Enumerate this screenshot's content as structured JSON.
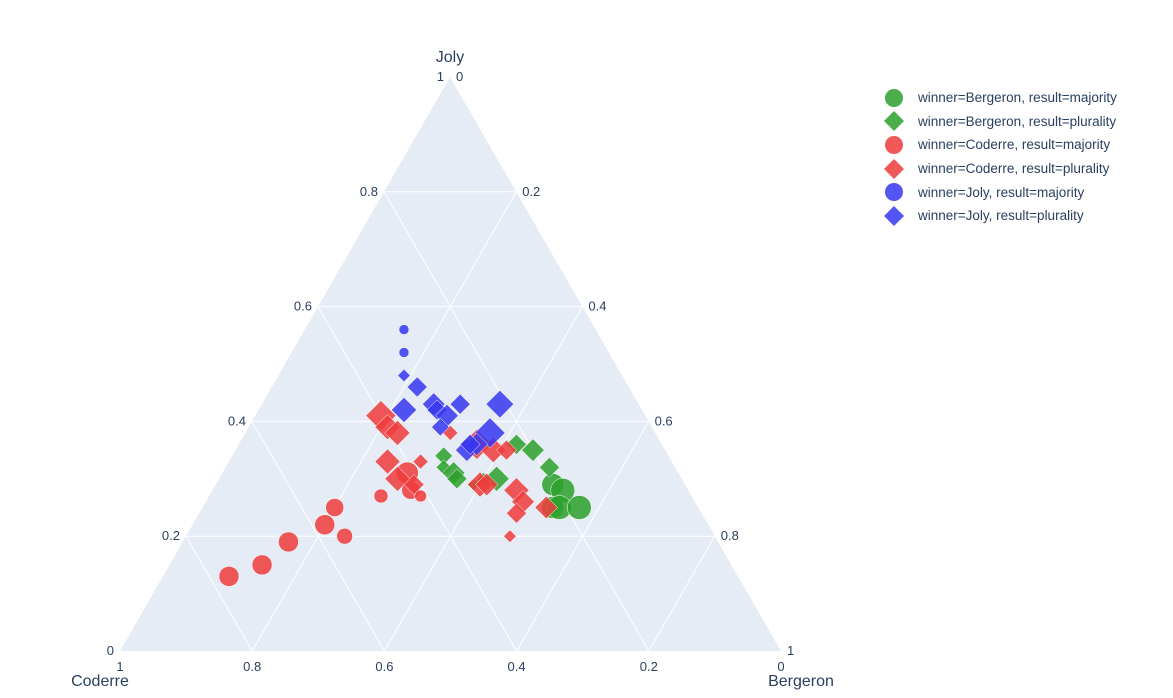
{
  "chart_data": {
    "type": "scatter",
    "subtype": "ternary",
    "axes": {
      "a": {
        "title": "Joly",
        "ticks": [
          "0",
          "0.2",
          "0.4",
          "0.6",
          "0.8",
          "1"
        ]
      },
      "b": {
        "title": "Coderre",
        "ticks": [
          "0",
          "0.2",
          "0.4",
          "0.6",
          "0.8",
          "1"
        ]
      },
      "c": {
        "title": "Bergeron",
        "ticks": [
          "0",
          "0.2",
          "0.4",
          "0.6",
          "0.8",
          "1"
        ]
      }
    },
    "grid": true,
    "legend_position": "top-right",
    "series": [
      {
        "name": "winner=Bergeron, result=majority",
        "color": "#2ca02c",
        "symbol": "circle",
        "points": [
          {
            "joly": 0.29,
            "coderre": 0.2,
            "bergeron": 0.51,
            "size": 11
          },
          {
            "joly": 0.28,
            "coderre": 0.19,
            "bergeron": 0.53,
            "size": 12
          },
          {
            "joly": 0.25,
            "coderre": 0.22,
            "bergeron": 0.53,
            "size": 11
          },
          {
            "joly": 0.25,
            "coderre": 0.21,
            "bergeron": 0.54,
            "size": 12
          },
          {
            "joly": 0.25,
            "coderre": 0.18,
            "bergeron": 0.57,
            "size": 12
          }
        ]
      },
      {
        "name": "winner=Bergeron, result=plurality",
        "color": "#2ca02c",
        "symbol": "diamond",
        "points": [
          {
            "joly": 0.34,
            "coderre": 0.34,
            "bergeron": 0.32,
            "size": 7
          },
          {
            "joly": 0.32,
            "coderre": 0.35,
            "bergeron": 0.33,
            "size": 6
          },
          {
            "joly": 0.31,
            "coderre": 0.34,
            "bergeron": 0.35,
            "size": 9
          },
          {
            "joly": 0.3,
            "coderre": 0.34,
            "bergeron": 0.36,
            "size": 8
          },
          {
            "joly": 0.29,
            "coderre": 0.32,
            "bergeron": 0.39,
            "size": 5
          },
          {
            "joly": 0.3,
            "coderre": 0.3,
            "bergeron": 0.4,
            "size": 5
          },
          {
            "joly": 0.3,
            "coderre": 0.28,
            "bergeron": 0.42,
            "size": 10
          },
          {
            "joly": 0.36,
            "coderre": 0.22,
            "bergeron": 0.42,
            "size": 8
          },
          {
            "joly": 0.35,
            "coderre": 0.2,
            "bergeron": 0.45,
            "size": 9
          },
          {
            "joly": 0.32,
            "coderre": 0.19,
            "bergeron": 0.49,
            "size": 8
          }
        ]
      },
      {
        "name": "winner=Coderre, result=majority",
        "color": "#ef3b3b",
        "symbol": "circle",
        "points": [
          {
            "joly": 0.13,
            "coderre": 0.77,
            "bergeron": 0.1,
            "size": 10
          },
          {
            "joly": 0.15,
            "coderre": 0.71,
            "bergeron": 0.14,
            "size": 10
          },
          {
            "joly": 0.19,
            "coderre": 0.65,
            "bergeron": 0.16,
            "size": 10
          },
          {
            "joly": 0.22,
            "coderre": 0.58,
            "bergeron": 0.2,
            "size": 10
          },
          {
            "joly": 0.25,
            "coderre": 0.55,
            "bergeron": 0.2,
            "size": 9
          },
          {
            "joly": 0.2,
            "coderre": 0.56,
            "bergeron": 0.24,
            "size": 8
          },
          {
            "joly": 0.27,
            "coderre": 0.47,
            "bergeron": 0.26,
            "size": 7
          },
          {
            "joly": 0.31,
            "coderre": 0.41,
            "bergeron": 0.28,
            "size": 11
          },
          {
            "joly": 0.28,
            "coderre": 0.42,
            "bergeron": 0.3,
            "size": 9
          },
          {
            "joly": 0.27,
            "coderre": 0.41,
            "bergeron": 0.32,
            "size": 6
          }
        ]
      },
      {
        "name": "winner=Coderre, result=plurality",
        "color": "#ef3b3b",
        "symbol": "diamond",
        "points": [
          {
            "joly": 0.41,
            "coderre": 0.4,
            "bergeron": 0.19,
            "size": 12
          },
          {
            "joly": 0.39,
            "coderre": 0.4,
            "bergeron": 0.21,
            "size": 10
          },
          {
            "joly": 0.38,
            "coderre": 0.39,
            "bergeron": 0.23,
            "size": 10
          },
          {
            "joly": 0.33,
            "coderre": 0.43,
            "bergeron": 0.24,
            "size": 10
          },
          {
            "joly": 0.3,
            "coderre": 0.43,
            "bergeron": 0.27,
            "size": 10
          },
          {
            "joly": 0.29,
            "coderre": 0.41,
            "bergeron": 0.3,
            "size": 8
          },
          {
            "joly": 0.33,
            "coderre": 0.38,
            "bergeron": 0.29,
            "size": 6
          },
          {
            "joly": 0.38,
            "coderre": 0.31,
            "bergeron": 0.31,
            "size": 6
          },
          {
            "joly": 0.36,
            "coderre": 0.28,
            "bergeron": 0.36,
            "size": 12
          },
          {
            "joly": 0.35,
            "coderre": 0.26,
            "bergeron": 0.39,
            "size": 10
          },
          {
            "joly": 0.35,
            "coderre": 0.24,
            "bergeron": 0.41,
            "size": 8
          },
          {
            "joly": 0.29,
            "coderre": 0.31,
            "bergeron": 0.4,
            "size": 10
          },
          {
            "joly": 0.29,
            "coderre": 0.3,
            "bergeron": 0.41,
            "size": 9
          },
          {
            "joly": 0.28,
            "coderre": 0.26,
            "bergeron": 0.46,
            "size": 10
          },
          {
            "joly": 0.26,
            "coderre": 0.26,
            "bergeron": 0.48,
            "size": 9
          },
          {
            "joly": 0.25,
            "coderre": 0.23,
            "bergeron": 0.52,
            "size": 9
          },
          {
            "joly": 0.24,
            "coderre": 0.28,
            "bergeron": 0.48,
            "size": 8
          },
          {
            "joly": 0.2,
            "coderre": 0.31,
            "bergeron": 0.49,
            "size": 5
          }
        ]
      },
      {
        "name": "winner=Joly, result=majority",
        "color": "#3636f0",
        "symbol": "circle",
        "points": [
          {
            "joly": 0.56,
            "coderre": 0.29,
            "bergeron": 0.15,
            "size": 5
          },
          {
            "joly": 0.52,
            "coderre": 0.31,
            "bergeron": 0.17,
            "size": 5
          }
        ]
      },
      {
        "name": "winner=Joly, result=plurality",
        "color": "#3636f0",
        "symbol": "diamond",
        "points": [
          {
            "joly": 0.48,
            "coderre": 0.33,
            "bergeron": 0.19,
            "size": 5
          },
          {
            "joly": 0.46,
            "coderre": 0.32,
            "bergeron": 0.22,
            "size": 8
          },
          {
            "joly": 0.42,
            "coderre": 0.36,
            "bergeron": 0.22,
            "size": 10
          },
          {
            "joly": 0.43,
            "coderre": 0.31,
            "bergeron": 0.26,
            "size": 9
          },
          {
            "joly": 0.42,
            "coderre": 0.31,
            "bergeron": 0.27,
            "size": 8
          },
          {
            "joly": 0.41,
            "coderre": 0.3,
            "bergeron": 0.29,
            "size": 9
          },
          {
            "joly": 0.43,
            "coderre": 0.27,
            "bergeron": 0.3,
            "size": 8
          },
          {
            "joly": 0.39,
            "coderre": 0.32,
            "bergeron": 0.29,
            "size": 7
          },
          {
            "joly": 0.43,
            "coderre": 0.21,
            "bergeron": 0.36,
            "size": 11
          },
          {
            "joly": 0.38,
            "coderre": 0.25,
            "bergeron": 0.37,
            "size": 12
          },
          {
            "joly": 0.35,
            "coderre": 0.3,
            "bergeron": 0.35,
            "size": 9
          },
          {
            "joly": 0.36,
            "coderre": 0.28,
            "bergeron": 0.36,
            "size": 9
          },
          {
            "joly": 0.36,
            "coderre": 0.29,
            "bergeron": 0.35,
            "size": 8
          }
        ]
      }
    ]
  }
}
